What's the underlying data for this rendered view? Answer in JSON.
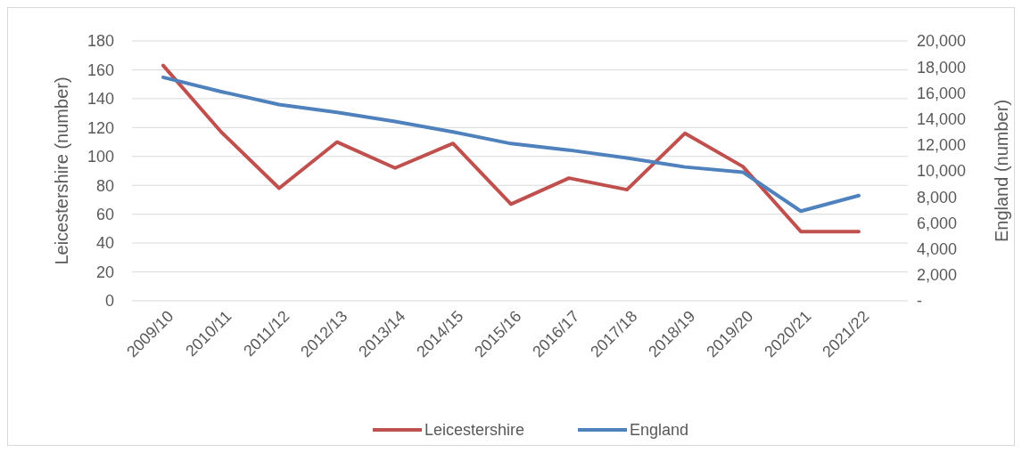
{
  "chart_data": {
    "type": "line",
    "ylabel": "Leicestershire (number)",
    "y2label": "England (number)",
    "categories": [
      "2009/10",
      "2010/11",
      "2011/12",
      "2012/13",
      "2013/14",
      "2014/15",
      "2015/16",
      "2016/17",
      "2017/18",
      "2018/19",
      "2019/20",
      "2020/21",
      "2021/22"
    ],
    "series": [
      {
        "name": "Leicestershire",
        "color": "#c0504d",
        "values": [
          163,
          117,
          78,
          110,
          92,
          109,
          67,
          85,
          77,
          116,
          93,
          48,
          48
        ]
      },
      {
        "name": "England",
        "color": "#4f81bd",
        "axis": "y2",
        "values": [
          17200,
          16100,
          15100,
          14500,
          13800,
          13000,
          12100,
          11600,
          11000,
          10300,
          9900,
          6900,
          8100
        ]
      }
    ],
    "ylim": [
      0,
      180
    ],
    "yticks": [
      0,
      20,
      40,
      60,
      80,
      100,
      120,
      140,
      160,
      180
    ],
    "y2lim": [
      0,
      20000
    ],
    "y2ticks": [
      {
        "value": 0,
        "label": "-"
      },
      {
        "value": 2000,
        "label": "2,000"
      },
      {
        "value": 4000,
        "label": "4,000"
      },
      {
        "value": 6000,
        "label": "6,000"
      },
      {
        "value": 8000,
        "label": "8,000"
      },
      {
        "value": 10000,
        "label": "10,000"
      },
      {
        "value": 12000,
        "label": "12,000"
      },
      {
        "value": 14000,
        "label": "14,000"
      },
      {
        "value": 16000,
        "label": "16,000"
      },
      {
        "value": 18000,
        "label": "18,000"
      },
      {
        "value": 20000,
        "label": "20,000"
      }
    ],
    "grid": "y",
    "legend": "bottom",
    "marker": "none",
    "line_style": "solid"
  }
}
